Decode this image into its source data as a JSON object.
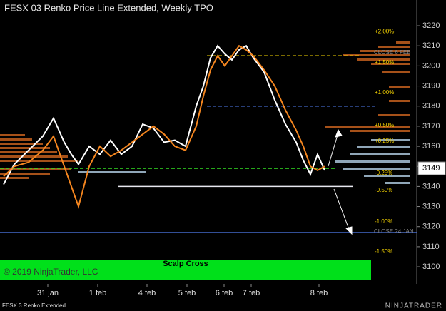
{
  "chart_data": {
    "type": "line",
    "title": "FESX 03 Renko Price Line Extended, Weekly TPO",
    "x": [
      1,
      4,
      8,
      12,
      15,
      18,
      20,
      22,
      25,
      28,
      31,
      34,
      37,
      40,
      43,
      46,
      49,
      52,
      55,
      57,
      59,
      61,
      63,
      65,
      67,
      69,
      71,
      74,
      77,
      80,
      83,
      85,
      87,
      89,
      91
    ],
    "series": [
      {
        "color": "#ffffff",
        "values": [
          3141,
          3151,
          3158,
          3165,
          3174,
          3162,
          3156,
          3151,
          3160,
          3156,
          3163,
          3156,
          3160,
          3171,
          3169,
          3162,
          3163,
          3160,
          3180,
          3190,
          3204,
          3210,
          3206,
          3203,
          3208,
          3210,
          3204,
          3197,
          3183,
          3171,
          3162,
          3153,
          3146,
          3156,
          3148
        ]
      },
      {
        "color": "#f5861f",
        "values": [
          3145,
          3150,
          3152,
          3158,
          3165,
          3150,
          3140,
          3130,
          3150,
          3160,
          3155,
          3158,
          3162,
          3166,
          3170,
          3166,
          3160,
          3158,
          3170,
          3185,
          3198,
          3205,
          3200,
          3205,
          3210,
          3208,
          3205,
          3198,
          3190,
          3178,
          3168,
          3160,
          3150,
          3148,
          3150
        ]
      }
    ],
    "xlim": [
      0,
      125
    ],
    "xticks": [
      {
        "value": 13.4,
        "label": "31 jan"
      },
      {
        "value": 27.4,
        "label": "1 feb"
      },
      {
        "value": 41.2,
        "label": "4 feb"
      },
      {
        "value": 52.4,
        "label": "5 feb"
      },
      {
        "value": 62.8,
        "label": "6 feb"
      },
      {
        "value": 70.4,
        "label": "7 feb"
      },
      {
        "value": 89.4,
        "label": "8 feb"
      }
    ],
    "ylim": [
      3091.5,
      3232.8
    ],
    "yticks": [
      3100,
      3110,
      3120,
      3130,
      3140,
      3150,
      3160,
      3170,
      3180,
      3190,
      3200,
      3210,
      3220
    ],
    "levels": [
      {
        "value": 3205,
        "color": "#f5d300",
        "dash": true,
        "from": 58,
        "to": 101
      },
      {
        "value": 3180,
        "color": "#4f7cf0",
        "dash": true,
        "from": 58,
        "to": 105
      },
      {
        "value": 3149,
        "color": "#33dd22",
        "dash": true,
        "from": 0,
        "to": 94
      },
      {
        "value": 3140,
        "color": "#e8e8f0",
        "dash": false,
        "from": 33,
        "to": 99
      },
      {
        "value": 3117,
        "color": "#4f7cf0",
        "dash": false,
        "from": 0,
        "to": 117
      }
    ],
    "pct_levels": [
      {
        "value": 3217,
        "label": "+2.00%"
      },
      {
        "value": 3201.6,
        "label": "+1.50%"
      },
      {
        "value": 3186.7,
        "label": "+1.00%"
      },
      {
        "value": 3170.4,
        "label": "+0.50%"
      },
      {
        "value": 3162.6,
        "label": "+0.25%"
      },
      {
        "value": 3146.6,
        "label": "-0.25%"
      },
      {
        "value": 3138,
        "label": "-0.50%"
      },
      {
        "value": 3122.5,
        "label": "-1.00%"
      },
      {
        "value": 3107.6,
        "label": "-1.50%"
      }
    ],
    "close_labels": [
      {
        "value": 3206.5,
        "label": "CLOSE 6 FEB"
      },
      {
        "value": 3117.5,
        "label": "CLOSE 24 JAN"
      }
    ],
    "last_price": 3149,
    "banner": "Scalp Cross",
    "copyright": "© 2019 NinjaTrader, LLC",
    "footer": "FESX 3 Renko Extended",
    "logo": "NINJATRADER"
  }
}
